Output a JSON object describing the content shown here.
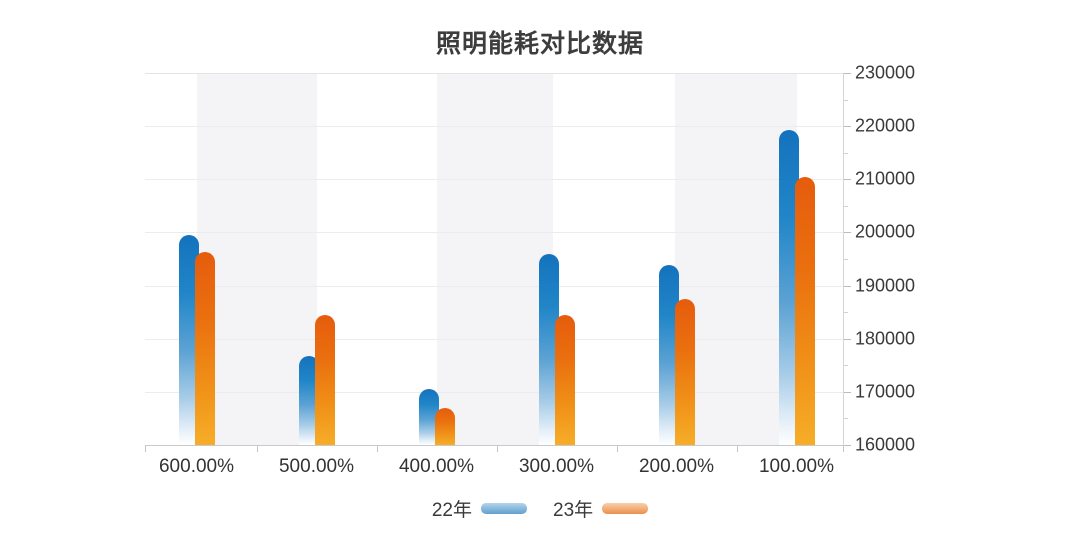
{
  "chart_data": {
    "type": "bar",
    "title": "照明能耗对比数据",
    "categories": [
      "600.00%",
      "500.00%",
      "400.00%",
      "300.00%",
      "200.00%",
      "100.00%"
    ],
    "series": [
      {
        "name": "22年",
        "color": "#1577c0",
        "gradient_bottom": "#ffffff",
        "values": [
          199500,
          176800,
          170500,
          195900,
          193900,
          219200
        ]
      },
      {
        "name": "23年",
        "color": "#e8610e",
        "gradient_bottom": "#f6ad28",
        "values": [
          196300,
          184400,
          167000,
          184400,
          187400,
          210400
        ]
      }
    ],
    "ylim": [
      160000,
      230000
    ],
    "ytick_step": 10000,
    "y_tick_labels": [
      "230000",
      "220000",
      "210000",
      "200000",
      "190000",
      "180000",
      "170000",
      "160000"
    ],
    "yaxis_side": "right",
    "legend_position": "bottom",
    "grid": "vertical-split-bands"
  }
}
